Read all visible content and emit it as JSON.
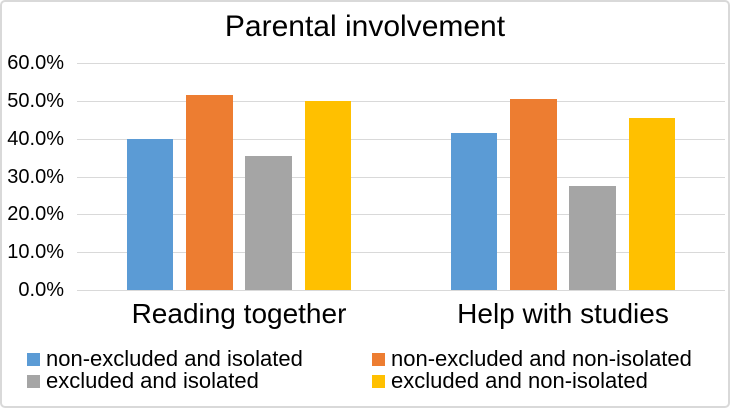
{
  "title": "Parental involvement",
  "chart_data": {
    "type": "bar",
    "title": "Parental involvement",
    "categories": [
      "Reading together",
      "Help with studies"
    ],
    "series": [
      {
        "name": "non-excluded and isolated",
        "color": "#5B9BD5",
        "values": [
          40.0,
          41.4
        ]
      },
      {
        "name": "non-excluded and non-isolated",
        "color": "#ED7D31",
        "values": [
          51.5,
          50.6
        ]
      },
      {
        "name": "excluded and isolated",
        "color": "#A5A5A5",
        "values": [
          35.3,
          27.4
        ]
      },
      {
        "name": "excluded and non-isolated",
        "color": "#FFC000",
        "values": [
          50.0,
          45.4
        ]
      }
    ],
    "xlabel": "",
    "ylabel": "",
    "ylim": [
      0,
      60
    ],
    "ytick_step": 10,
    "yticks": [
      "0.0%",
      "10.0%",
      "20.0%",
      "30.0%",
      "40.0%",
      "50.0%",
      "60.0%"
    ],
    "grid": "horizontal",
    "legend_position": "bottom",
    "legend_columns": 2
  },
  "colors": {
    "background": "#FFFFFF",
    "border": "#D9D9D9",
    "gridline": "#D9D9D9",
    "text": "#000000"
  }
}
